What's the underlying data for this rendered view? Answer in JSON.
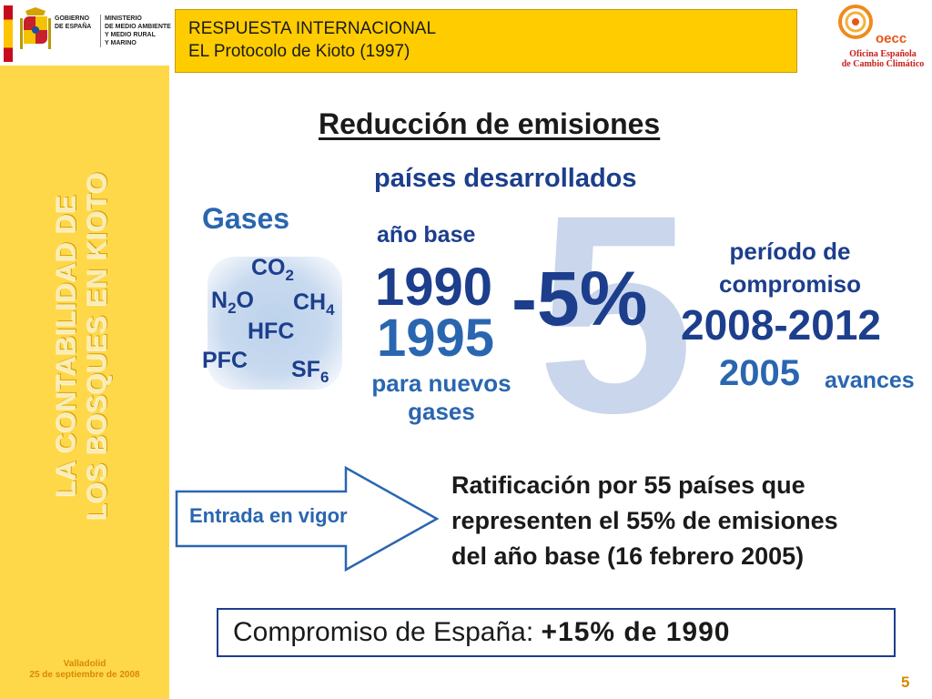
{
  "sidebar": {
    "gov_label_1": "GOBIERNO",
    "gov_label_2": "DE ESPAÑA",
    "ministry_1": "MINISTERIO",
    "ministry_2": "DE MEDIO AMBIENTE",
    "ministry_3": "Y MEDIO RURAL",
    "ministry_4": "Y MARINO",
    "vertical_title_1": "LA CONTABILIDAD DE",
    "vertical_title_2": "LOS BOSQUES EN KIOTO",
    "place": "Valladolid",
    "date": "25 de septiembre de 2008"
  },
  "header": {
    "line1": "RESPUESTA INTERNACIONAL",
    "line2": "EL Protocolo de Kioto (1997)"
  },
  "logo": {
    "name": "oecc",
    "sub1": "Oficina Española",
    "sub2": "de Cambio Climático"
  },
  "main": {
    "title": "Reducción de emisiones",
    "subtitle": "países desarrollados",
    "big_digit": "5",
    "reduction": "-5%"
  },
  "gases": {
    "label": "Gases",
    "co2": "CO",
    "co2_sub": "2",
    "n2o_a": "N",
    "n2o_sub": "2",
    "n2o_b": "O",
    "ch4": "CH",
    "ch4_sub": "4",
    "hfc": "HFC",
    "pfc": "PFC",
    "sf6": "SF",
    "sf6_sub": "6"
  },
  "base": {
    "label": "año base",
    "year1": "1990",
    "year2": "1995",
    "note1": "para nuevos",
    "note2": "gases"
  },
  "period": {
    "label1": "período de",
    "label2": "compromiso",
    "years": "2008-2012",
    "year_progress": "2005",
    "progress_label": "avances"
  },
  "entry": {
    "arrow_label": "Entrada en vigor",
    "line1": "Ratificación por 55 países que",
    "line2": "representen el 55% de emisiones",
    "line3": "del año base (16 febrero 2005)"
  },
  "spain": {
    "label": "Compromiso de España: ",
    "value": "+15% de 1990"
  },
  "page_number": "5"
}
